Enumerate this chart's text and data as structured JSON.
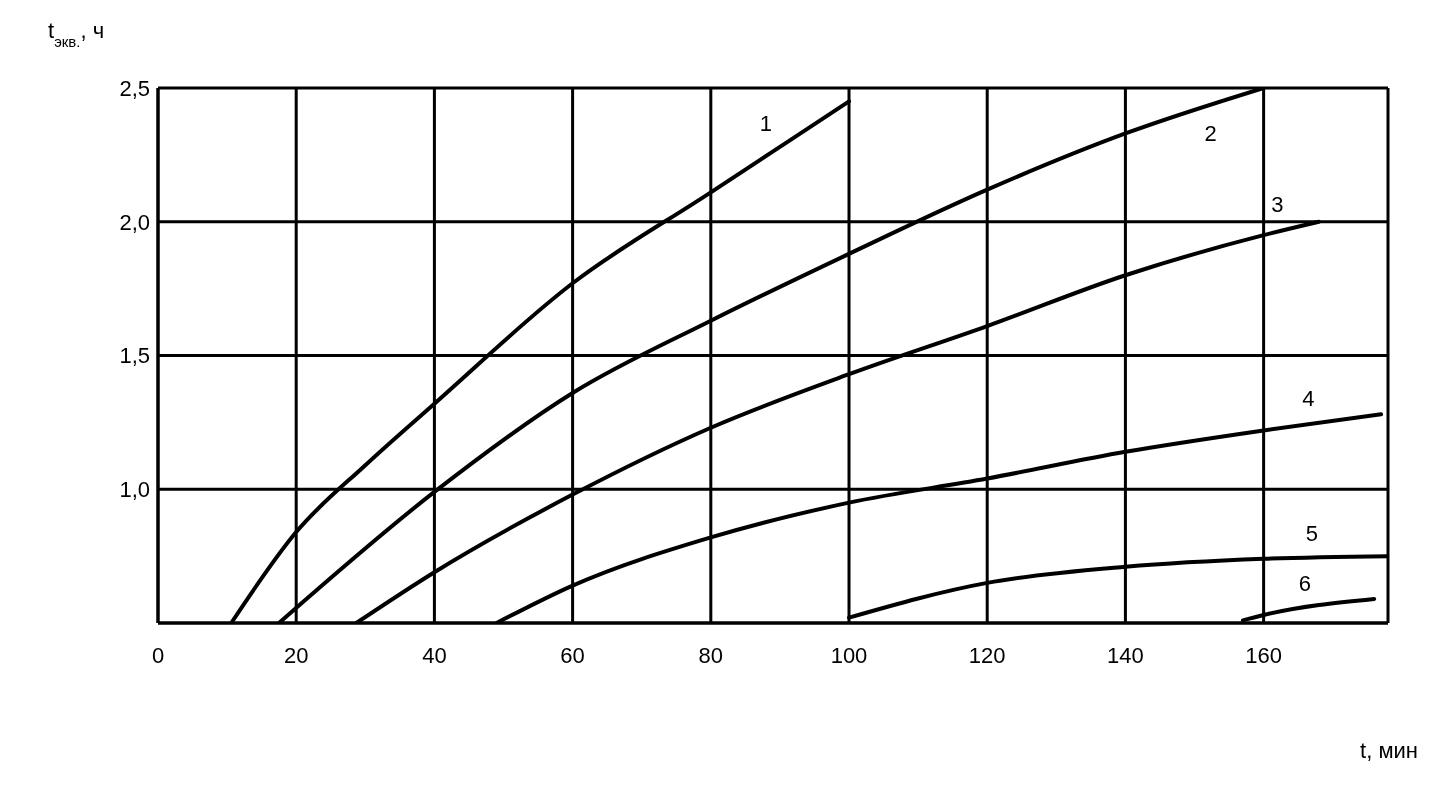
{
  "chart_data": {
    "type": "line",
    "xlabel": "t, мин",
    "ylabel": "t$_{экв.}$, ч",
    "xlim": [
      0,
      178
    ],
    "xticks": [
      0,
      20,
      40,
      60,
      80,
      100,
      120,
      140,
      160
    ],
    "ylim": [
      0.5,
      2.5
    ],
    "yticks": [
      {
        "value": 1,
        "label": "1,0"
      },
      {
        "value": 1.5,
        "label": "1,5"
      },
      {
        "value": 2,
        "label": "2,0"
      },
      {
        "value": 2.5,
        "label": "2,5"
      }
    ],
    "grid": true,
    "marker": "none",
    "line_style": "solid",
    "series": [
      {
        "name": "1",
        "color": "#000000",
        "x": [
          10.6,
          20,
          30,
          40,
          60,
          80,
          100
        ],
        "values": [
          0.5,
          0.84,
          1.09,
          1.32,
          1.77,
          2.11,
          2.45
        ]
      },
      {
        "name": "2",
        "color": "#000000",
        "x": [
          17.5,
          40,
          60,
          80,
          100,
          120,
          140,
          160
        ],
        "values": [
          0.5,
          0.99,
          1.36,
          1.63,
          1.88,
          2.12,
          2.33,
          2.5
        ]
      },
      {
        "name": "3",
        "color": "#000000",
        "x": [
          28.7,
          40,
          60,
          80,
          100,
          120,
          140,
          160,
          168
        ],
        "values": [
          0.5,
          0.69,
          0.98,
          1.23,
          1.43,
          1.61,
          1.8,
          1.95,
          2.0
        ]
      },
      {
        "name": "4",
        "color": "#000000",
        "x": [
          49,
          60,
          80,
          100,
          120,
          140,
          160,
          177
        ],
        "values": [
          0.5,
          0.64,
          0.82,
          0.95,
          1.04,
          1.14,
          1.22,
          1.28
        ]
      },
      {
        "name": "5",
        "color": "#000000",
        "x": [
          100,
          120,
          140,
          160,
          178
        ],
        "values": [
          0.52,
          0.65,
          0.71,
          0.74,
          0.75
        ]
      },
      {
        "name": "6",
        "color": "#000000",
        "x": [
          157,
          160,
          176
        ],
        "values": [
          0.51,
          0.53,
          0.59
        ]
      }
    ]
  }
}
